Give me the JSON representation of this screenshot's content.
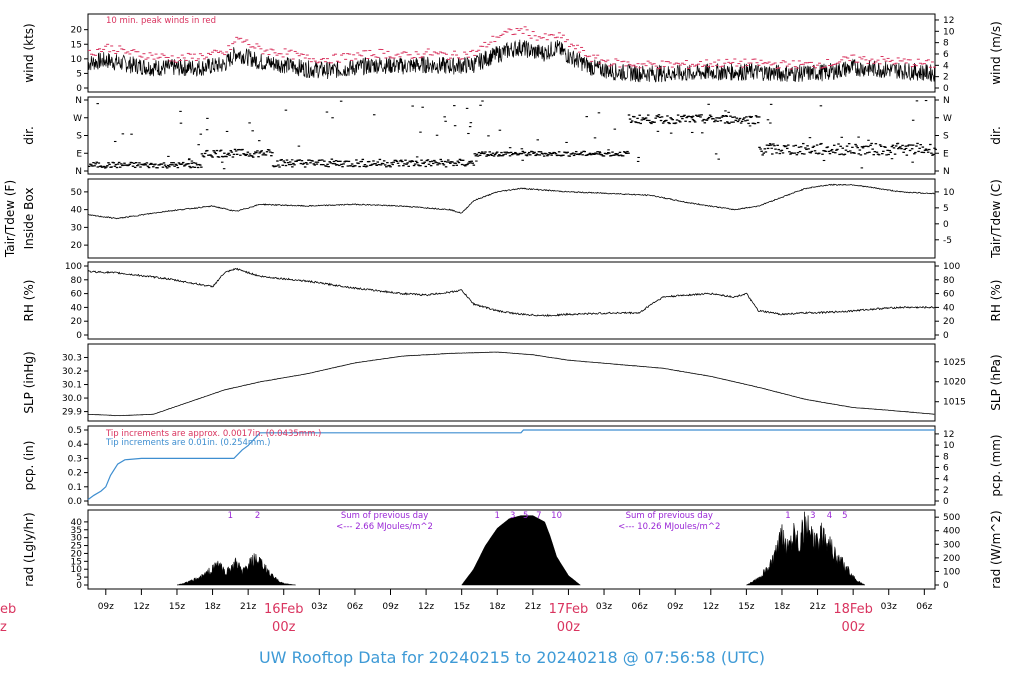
{
  "footer": {
    "title": "UW Rooftop Data for 20240215  to  20240218 @ 07:56:58  (UTC)"
  },
  "colors": {
    "red": "#d9345f",
    "blue": "#3e8ed0",
    "purple": "#9a27d6",
    "footer": "#3e9ad6",
    "line": "#000000"
  },
  "time_axis": {
    "unit": "hours since 2024-02-15 00z",
    "range": [
      7.5,
      78.9
    ],
    "ticks": [
      {
        "h": 9,
        "label": "09z"
      },
      {
        "h": 12,
        "label": "12z"
      },
      {
        "h": 15,
        "label": "15z"
      },
      {
        "h": 18,
        "label": "18z"
      },
      {
        "h": 21,
        "label": "21z"
      },
      {
        "h": 24,
        "label": "16Feb",
        "sub": "00z",
        "day": true
      },
      {
        "h": 27,
        "label": "03z"
      },
      {
        "h": 30,
        "label": "06z"
      },
      {
        "h": 33,
        "label": "09z"
      },
      {
        "h": 36,
        "label": "12z"
      },
      {
        "h": 39,
        "label": "15z"
      },
      {
        "h": 42,
        "label": "18z"
      },
      {
        "h": 45,
        "label": "21z"
      },
      {
        "h": 48,
        "label": "17Feb",
        "sub": "00z",
        "day": true
      },
      {
        "h": 51,
        "label": "03z"
      },
      {
        "h": 54,
        "label": "06z"
      },
      {
        "h": 57,
        "label": "09z"
      },
      {
        "h": 60,
        "label": "12z"
      },
      {
        "h": 63,
        "label": "15z"
      },
      {
        "h": 66,
        "label": "18z"
      },
      {
        "h": 69,
        "label": "21z"
      },
      {
        "h": 72,
        "label": "18Feb",
        "sub": "00z",
        "day": true
      },
      {
        "h": 75,
        "label": "03z"
      },
      {
        "h": 78,
        "label": "06z"
      }
    ],
    "left_partial_label": "eb",
    "left_partial_sub": "z"
  },
  "chart_data": [
    {
      "id": "wind",
      "type": "line",
      "ylabel": "wind (kts)",
      "ylabel_right": "wind (m/s)",
      "ylim": [
        0,
        24
      ],
      "yticks": [
        0,
        5,
        10,
        15,
        20
      ],
      "rticks": [
        0,
        2,
        4,
        6,
        8,
        10,
        12
      ],
      "annotation": "10 min. peak winds in red",
      "series": [
        {
          "role": "mean",
          "x": [
            7.5,
            9,
            11,
            13,
            15,
            17,
            19,
            20,
            22,
            24,
            26,
            28,
            30,
            32,
            34,
            36,
            38,
            40,
            41,
            42,
            43,
            44,
            45,
            46,
            47,
            48,
            50,
            52,
            54,
            56,
            58,
            60,
            62,
            64,
            66,
            68,
            70,
            72,
            74,
            76,
            78.9
          ],
          "y": [
            8.5,
            9.5,
            8,
            7,
            7,
            7,
            8,
            12,
            9,
            8,
            6.5,
            6,
            7,
            8,
            7.5,
            8,
            7.5,
            8,
            10,
            11.5,
            13,
            14,
            12.5,
            12,
            14,
            11,
            7,
            5.5,
            5,
            5,
            5,
            5.5,
            5.5,
            5.5,
            5,
            5,
            5.5,
            7,
            6.5,
            6,
            5
          ]
        },
        {
          "role": "peak",
          "x": [
            7.5,
            9,
            11,
            13,
            15,
            17,
            19,
            20,
            22,
            24,
            26,
            28,
            30,
            32,
            34,
            36,
            38,
            40,
            41,
            42,
            43,
            44,
            45,
            46,
            47,
            48,
            50,
            52,
            54,
            56,
            58,
            60,
            62,
            64,
            66,
            68,
            70,
            72,
            74,
            76,
            78.9
          ],
          "y": [
            12,
            14,
            12,
            11,
            10,
            11,
            12,
            17,
            13,
            12,
            10,
            10,
            11,
            12,
            11,
            12,
            11,
            12,
            15,
            18,
            19,
            20,
            18,
            17,
            18,
            15,
            10,
            8.5,
            8,
            8,
            8,
            8.5,
            8.5,
            8.5,
            8,
            8,
            8.5,
            10,
            9.5,
            9,
            8
          ]
        }
      ]
    },
    {
      "id": "dir",
      "type": "scatter",
      "ylabel": "dir.",
      "ylabel_right": "dir.",
      "yticks": [
        "N",
        "E",
        "S",
        "W",
        "N"
      ],
      "rticks": [
        "N",
        "E",
        "S",
        "W",
        "N"
      ],
      "segments": [
        {
          "x": [
            7.5,
            17
          ],
          "dir": "N-E",
          "deg": [
            15,
            45
          ]
        },
        {
          "x": [
            17,
            23
          ],
          "dir": "E",
          "deg": [
            70,
            110
          ]
        },
        {
          "x": [
            23,
            40
          ],
          "dir": "N-E",
          "deg": [
            20,
            60
          ]
        },
        {
          "x": [
            40,
            53
          ],
          "dir": "E",
          "deg": [
            75,
            100
          ]
        },
        {
          "x": [
            53,
            64
          ],
          "dir": "W",
          "deg": [
            240,
            285
          ]
        },
        {
          "x": [
            64,
            78.9
          ],
          "dir": "E-S",
          "deg": [
            80,
            140
          ]
        }
      ]
    },
    {
      "id": "temp",
      "type": "line",
      "ylabel": "Tair/Tdew (F)",
      "ylabel_sub": "Inside Box",
      "ylabel_right": "Tair/Tdew (C)",
      "ylim": [
        15,
        55
      ],
      "yticks": [
        20,
        30,
        40,
        50
      ],
      "rticks": [
        -5,
        0,
        5,
        10
      ],
      "series": [
        {
          "x": [
            7.5,
            10,
            14,
            18,
            20,
            22,
            26,
            30,
            34,
            36,
            38,
            39,
            40,
            42,
            44,
            46,
            48,
            52,
            55,
            58,
            62,
            64,
            66,
            68,
            70,
            72,
            74,
            76,
            78.9
          ],
          "y": [
            37,
            35,
            39,
            42,
            39,
            43,
            42,
            43,
            42,
            41,
            40,
            38,
            45,
            50,
            52,
            51,
            50,
            49,
            48,
            44,
            40,
            42,
            47,
            52,
            54,
            54,
            52,
            50,
            49
          ]
        }
      ]
    },
    {
      "id": "rh",
      "type": "line",
      "ylabel": "RH (%)",
      "ylabel_right": "RH (%)",
      "ylim": [
        0,
        100
      ],
      "yticks": [
        0,
        20,
        40,
        60,
        80,
        100
      ],
      "rticks": [
        0,
        20,
        40,
        60,
        80,
        100
      ],
      "series": [
        {
          "x": [
            7.5,
            10,
            14,
            18,
            19,
            20,
            22,
            26,
            30,
            34,
            36,
            38,
            39,
            40,
            42,
            44,
            46,
            48,
            52,
            54,
            55,
            56,
            58,
            60,
            62,
            63,
            64,
            66,
            68,
            70,
            72,
            74,
            76,
            78.9
          ],
          "y": [
            92,
            90,
            82,
            70,
            90,
            96,
            85,
            78,
            68,
            60,
            58,
            62,
            65,
            45,
            35,
            30,
            28,
            30,
            32,
            32,
            45,
            55,
            58,
            60,
            55,
            60,
            35,
            30,
            32,
            33,
            35,
            38,
            40,
            40
          ]
        }
      ]
    },
    {
      "id": "slp",
      "type": "line",
      "ylabel": "SLP (inHg)",
      "ylabel_right": "SLP (hPa)",
      "ylim": [
        29.86,
        30.37
      ],
      "yticks": [
        "29.9",
        "30.0",
        "30.1",
        "30.2",
        "30.3"
      ],
      "rticks": [
        "1015",
        "1020",
        "1025"
      ],
      "series": [
        {
          "x": [
            7.5,
            10,
            13,
            16,
            19,
            22,
            26,
            30,
            34,
            38,
            42,
            45,
            48,
            52,
            56,
            60,
            64,
            68,
            72,
            75,
            78.9
          ],
          "y": [
            29.88,
            29.87,
            29.88,
            29.97,
            30.06,
            30.12,
            30.18,
            30.26,
            30.31,
            30.33,
            30.34,
            30.32,
            30.28,
            30.25,
            30.22,
            30.16,
            30.08,
            29.99,
            29.93,
            29.91,
            29.88
          ]
        }
      ]
    },
    {
      "id": "pcp",
      "type": "line",
      "ylabel": "pcp. (in)",
      "ylabel_right": "pcp. (mm)",
      "ylim": [
        0,
        0.5
      ],
      "yticks": [
        "0.0",
        "0.1",
        "0.2",
        "0.3",
        "0.4",
        "0.5"
      ],
      "rticks": [
        0,
        2,
        4,
        6,
        8,
        10,
        12
      ],
      "annotations": [
        {
          "text": "Tip increments are approx. 0.0017in. (0.0435mm.)",
          "color": "red"
        },
        {
          "text": "Tip increments are 0.01in. (0.254mm.)",
          "color": "blue"
        }
      ],
      "series": [
        {
          "x": [
            7.5,
            8,
            8.6,
            9.0,
            9.4,
            10,
            10.6,
            12,
            14,
            16,
            19.8,
            20.5,
            21,
            22,
            44,
            44.2,
            78.9
          ],
          "y": [
            0.01,
            0.04,
            0.07,
            0.1,
            0.18,
            0.26,
            0.29,
            0.3,
            0.3,
            0.3,
            0.3,
            0.36,
            0.39,
            0.48,
            0.48,
            0.5,
            0.5
          ]
        }
      ]
    },
    {
      "id": "rad",
      "type": "area",
      "ylabel": "rad (Lgly/hr)",
      "ylabel_right": "rad (W/m^2)",
      "ylim": [
        0,
        45
      ],
      "yticks": [
        0,
        5,
        10,
        15,
        20,
        25,
        30,
        35,
        40
      ],
      "rticks": [
        0,
        100,
        200,
        300,
        400,
        500
      ],
      "hour_marks": [
        {
          "h": 19.5,
          "label": "1"
        },
        {
          "h": 21.8,
          "label": "2"
        },
        {
          "h": 42.0,
          "label": "1"
        },
        {
          "h": 43.3,
          "label": "3"
        },
        {
          "h": 44.4,
          "label": "5"
        },
        {
          "h": 45.5,
          "label": "7"
        },
        {
          "h": 47.0,
          "label": "10"
        },
        {
          "h": 66.5,
          "label": "1"
        },
        {
          "h": 68.6,
          "label": "3"
        },
        {
          "h": 70.0,
          "label": "4"
        },
        {
          "h": 71.3,
          "label": "5"
        }
      ],
      "sums": [
        {
          "h": 32.5,
          "line1": "Sum of previous day",
          "line2": "<--- 2.66 MJoules/m^2"
        },
        {
          "h": 56.5,
          "line1": "Sum of previous day",
          "line2": "<--- 10.26 MJoules/m^2"
        }
      ],
      "series": [
        {
          "x": [
            15.0,
            16,
            17,
            18,
            18.5,
            19,
            19.5,
            20,
            20.5,
            21,
            21.5,
            22,
            22.5,
            23,
            23.5,
            24,
            25.0
          ],
          "y": [
            0,
            2,
            5,
            10,
            14,
            8,
            10,
            14,
            8,
            12,
            16,
            14,
            10,
            6,
            3,
            1,
            0
          ]
        },
        {
          "x": [
            39.0,
            40,
            41,
            42,
            43,
            44,
            45,
            46,
            46.5,
            47,
            48,
            49
          ],
          "y": [
            0,
            10,
            25,
            36,
            42,
            44,
            44,
            40,
            30,
            18,
            6,
            0
          ]
        },
        {
          "x": [
            63.0,
            64,
            65,
            65.5,
            66,
            66.5,
            67,
            67.5,
            68,
            68.5,
            69,
            69.5,
            70,
            70.5,
            71,
            71.5,
            72,
            72.5,
            73.0
          ],
          "y": [
            0,
            4,
            12,
            20,
            30,
            24,
            35,
            28,
            38,
            30,
            25,
            33,
            28,
            18,
            15,
            10,
            5,
            2,
            0
          ]
        }
      ]
    }
  ]
}
